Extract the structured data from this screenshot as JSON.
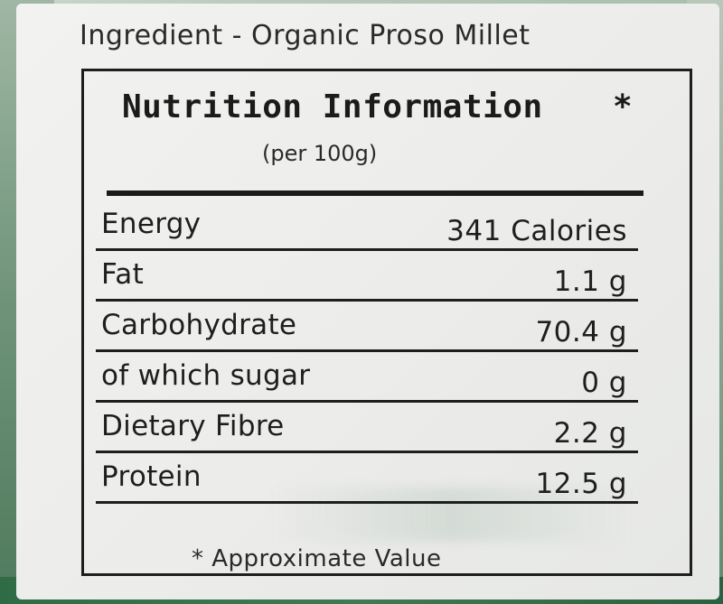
{
  "ingredient": "Ingredient - Organic Proso Millet",
  "nutrition": {
    "title": "Nutrition Information",
    "asterisk": "*",
    "per": "(per 100g)",
    "rows": [
      {
        "label": "Energy",
        "value": "341 Calories"
      },
      {
        "label": "Fat",
        "value": "1.1 g"
      },
      {
        "label": "Carbohydrate",
        "value": "70.4 g"
      },
      {
        "label": "of which sugar",
        "value": "0 g"
      },
      {
        "label": "Dietary Fibre",
        "value": "2.2 g"
      },
      {
        "label": "Protein",
        "value": "12.5 g"
      }
    ],
    "footnote": "* Approximate Value"
  }
}
